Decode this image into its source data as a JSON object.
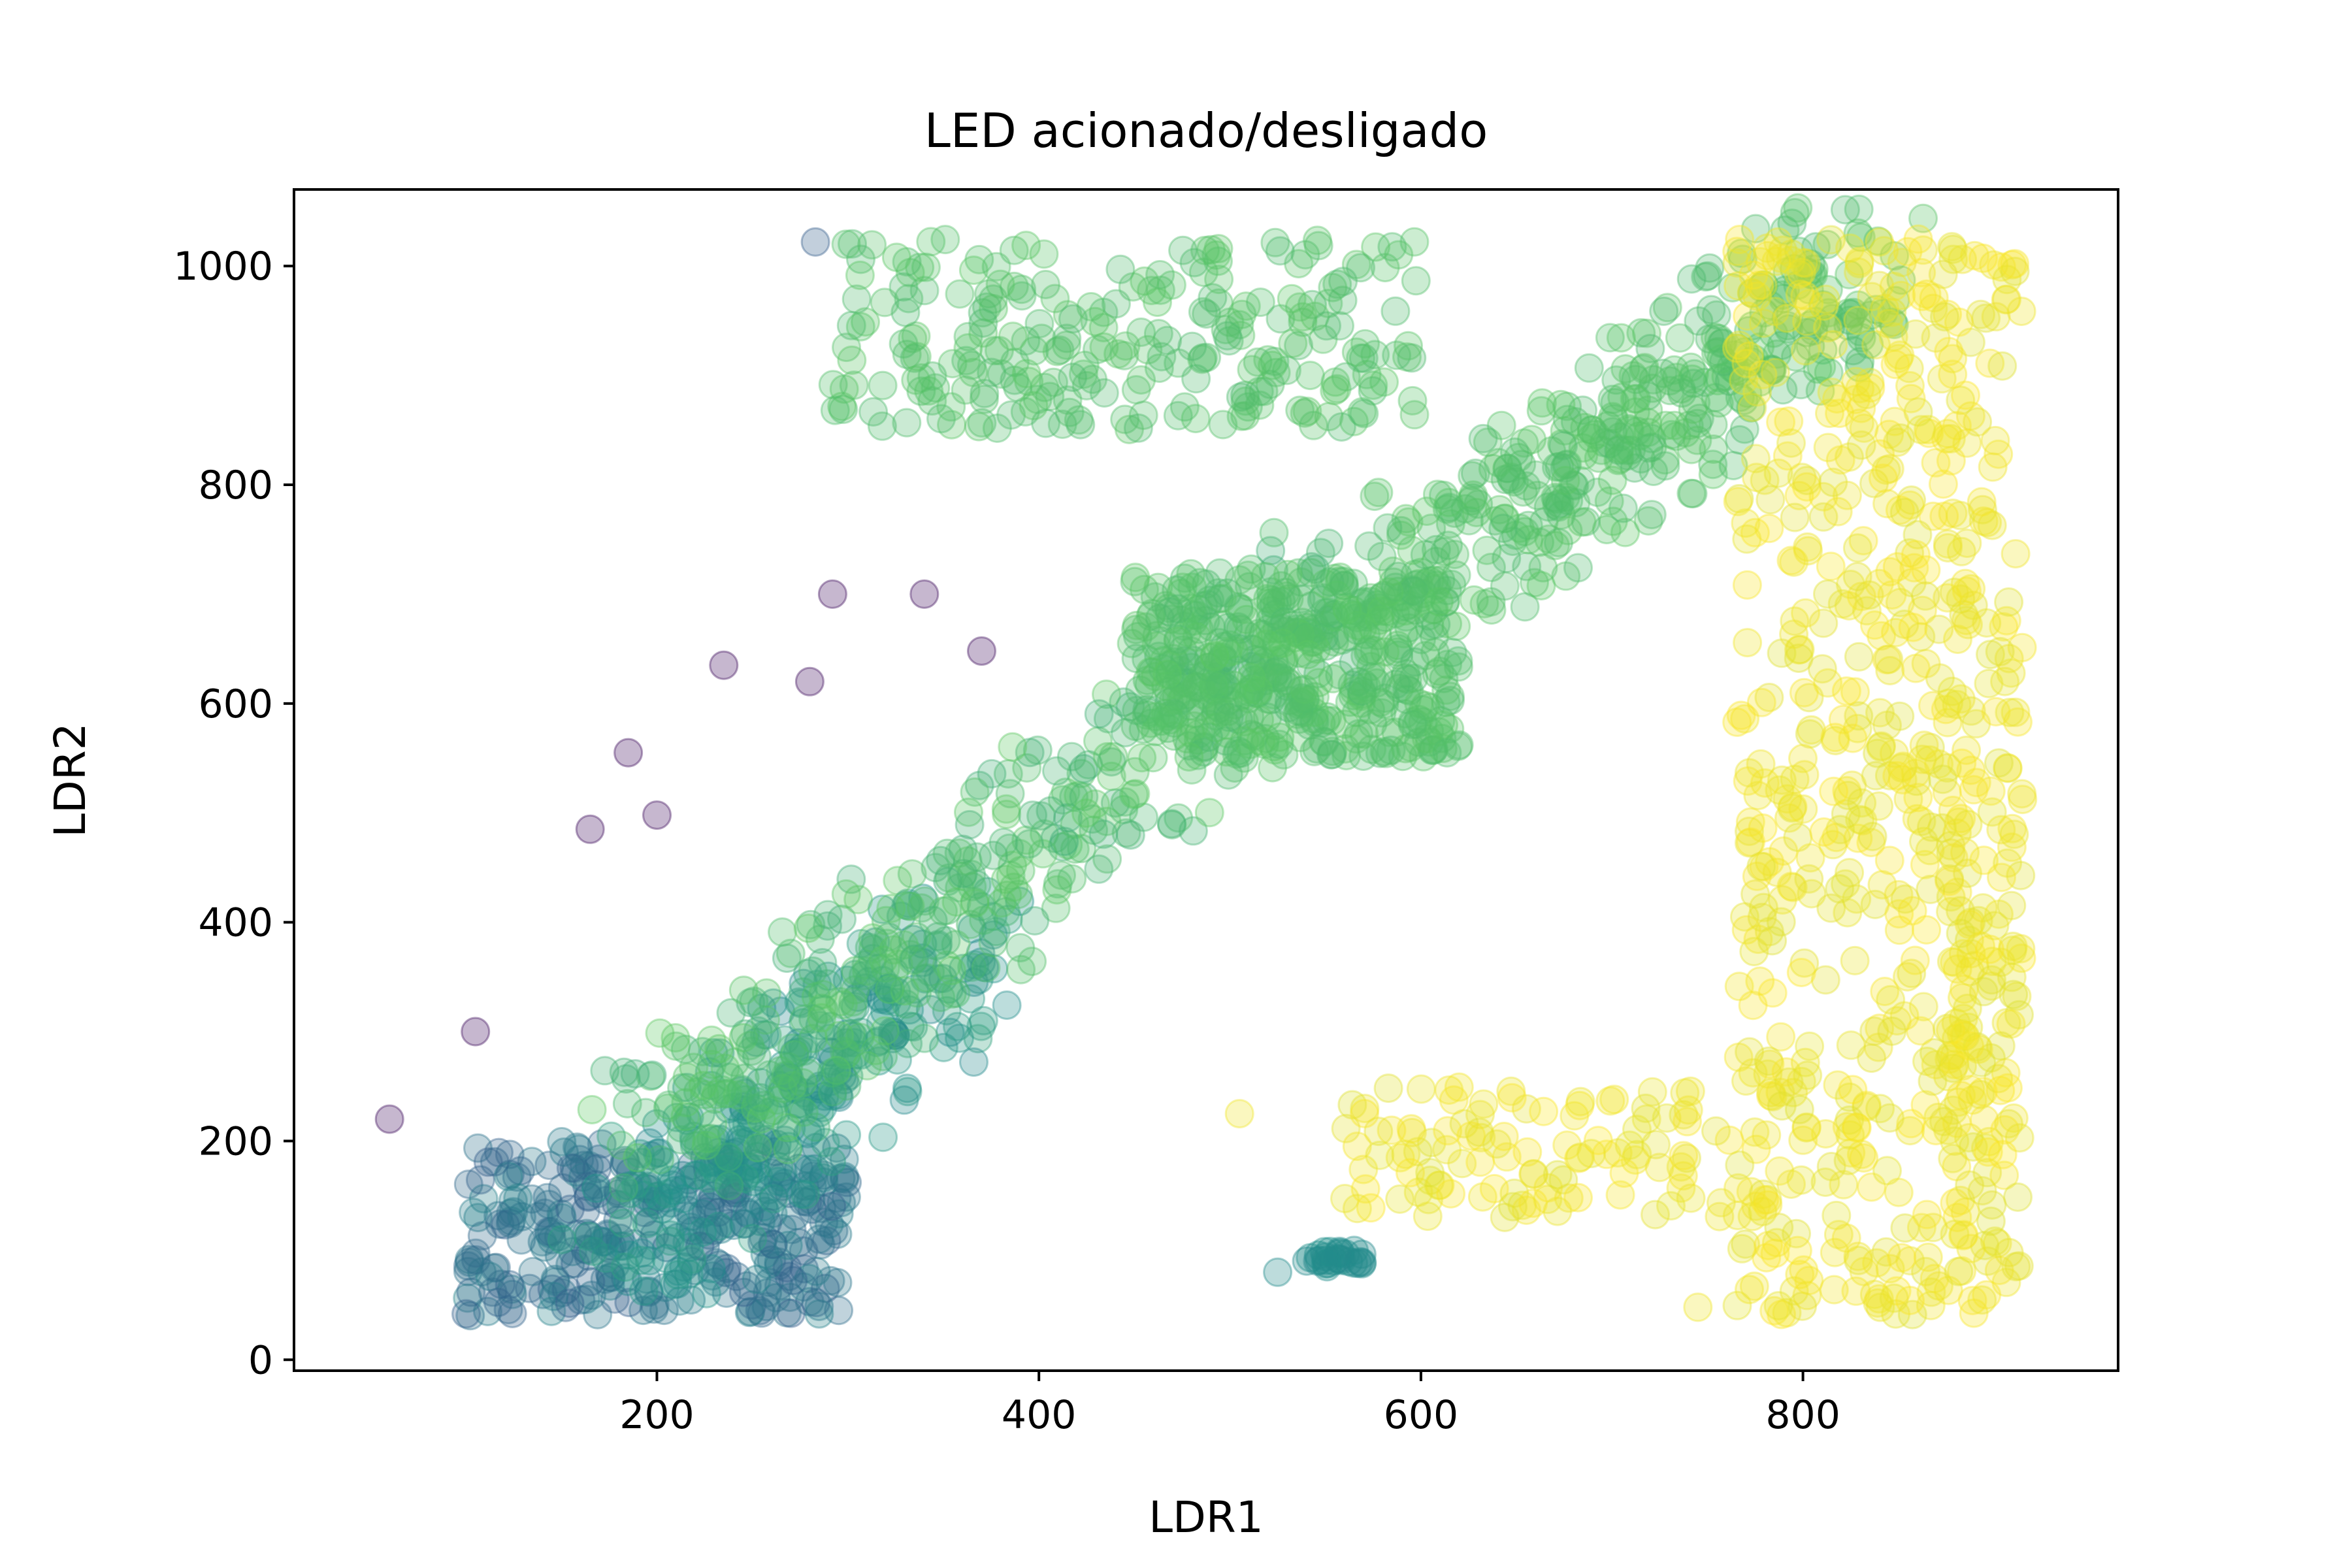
{
  "chart_data": {
    "type": "scatter",
    "title": "LED acionado/desligado",
    "xlabel": "LDR1",
    "ylabel": "LDR2",
    "xlim": [
      10,
      965
    ],
    "ylim": [
      -10,
      1070
    ],
    "xticks": [
      200,
      400,
      600,
      800
    ],
    "yticks": [
      0,
      200,
      400,
      600,
      800,
      1000
    ],
    "grid": false,
    "legend": "none",
    "marker": "circle",
    "alpha": 0.3,
    "colormap": "viridis",
    "color_stops": [
      "#440154",
      "#3b528b",
      "#21918c",
      "#5ec962",
      "#fde725"
    ],
    "clusters": [
      {
        "name": "low-dark-blue",
        "x": [
          100,
          300
        ],
        "y": [
          40,
          200
        ],
        "n": 320,
        "c": [
          0.3,
          0.45
        ]
      },
      {
        "name": "teal-diagonal",
        "x": [
          180,
          360
        ],
        "y": [
          100,
          380
        ],
        "n": 260,
        "c": [
          0.45,
          0.58
        ]
      },
      {
        "name": "green-diagonal",
        "x": [
          200,
          560
        ],
        "y": [
          200,
          700
        ],
        "n": 420,
        "c": [
          0.62,
          0.75
        ]
      },
      {
        "name": "green-dense",
        "x": [
          450,
          620
        ],
        "y": [
          550,
          720
        ],
        "n": 400,
        "c": [
          0.68,
          0.74
        ]
      },
      {
        "name": "green-upper",
        "x": [
          600,
          830
        ],
        "y": [
          720,
          1000
        ],
        "n": 360,
        "c": [
          0.68,
          0.74
        ]
      },
      {
        "name": "green-top",
        "x": [
          290,
          600
        ],
        "y": [
          850,
          1025
        ],
        "n": 260,
        "c": [
          0.68,
          0.74
        ]
      },
      {
        "name": "yellow-right",
        "x": [
          740,
          920
        ],
        "y": [
          40,
          1025
        ],
        "n": 700,
        "c": [
          0.95,
          1.0
        ]
      },
      {
        "name": "yellow-low",
        "x": [
          560,
          800
        ],
        "y": [
          130,
          250
        ],
        "n": 120,
        "c": [
          0.95,
          1.0
        ]
      },
      {
        "name": "teal-segment",
        "x": [
          540,
          570
        ],
        "y": [
          85,
          100
        ],
        "n": 25,
        "c": [
          0.45,
          0.5
        ]
      }
    ],
    "points": [
      [
        283,
        1022,
        0.3
      ],
      [
        280,
        620,
        0.05
      ],
      [
        235,
        635,
        0.05
      ],
      [
        292,
        700,
        0.05
      ],
      [
        340,
        700,
        0.05
      ],
      [
        370,
        648,
        0.05
      ],
      [
        185,
        555,
        0.05
      ],
      [
        200,
        498,
        0.05
      ],
      [
        165,
        485,
        0.05
      ],
      [
        105,
        300,
        0.05
      ],
      [
        60,
        220,
        0.05
      ],
      [
        557,
        97,
        0.48
      ],
      [
        565,
        100,
        0.48
      ],
      [
        550,
        94,
        0.48
      ],
      [
        525,
        80,
        0.48
      ],
      [
        505,
        225,
        0.98
      ],
      [
        770,
        765,
        0.98
      ],
      [
        745,
        48,
        0.98
      ],
      [
        840,
        1022,
        0.98
      ],
      [
        787,
        1022,
        0.98
      ]
    ]
  }
}
